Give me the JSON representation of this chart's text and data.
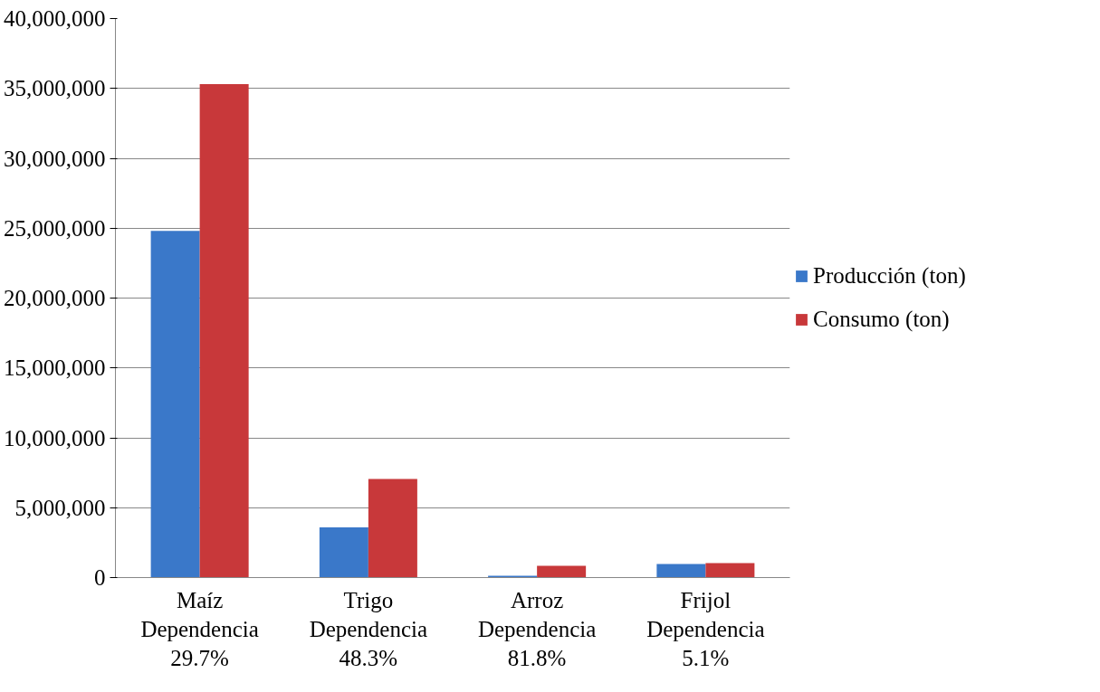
{
  "chart_data": {
    "type": "bar",
    "categories": [
      "Maíz\nDependencia\n29.7%",
      "Trigo\nDependencia\n48.3%",
      "Arroz\nDependencia\n81.8%",
      "Frijol\nDependencia\n5.1%"
    ],
    "series": [
      {
        "name": "Producción (ton)",
        "color": "#3a78c9",
        "values": [
          24800000,
          3600000,
          130000,
          970000
        ]
      },
      {
        "name": "Consumo (ton)",
        "color": "#c8383a",
        "values": [
          35300000,
          7050000,
          840000,
          1040000
        ]
      }
    ],
    "ylim": [
      0,
      40000000
    ],
    "yticks": [
      {
        "value": 0,
        "label": "0"
      },
      {
        "value": 5000000,
        "label": "5,000,000"
      },
      {
        "value": 10000000,
        "label": "10,000,000"
      },
      {
        "value": 15000000,
        "label": "15,000,000"
      },
      {
        "value": 20000000,
        "label": "20,000,000"
      },
      {
        "value": 25000000,
        "label": "25,000,000"
      },
      {
        "value": 30000000,
        "label": "30,000,000"
      },
      {
        "value": 35000000,
        "label": "35,000,000"
      },
      {
        "value": 40000000,
        "label": "40,000,000"
      }
    ],
    "grid": "y",
    "legend": "right"
  }
}
